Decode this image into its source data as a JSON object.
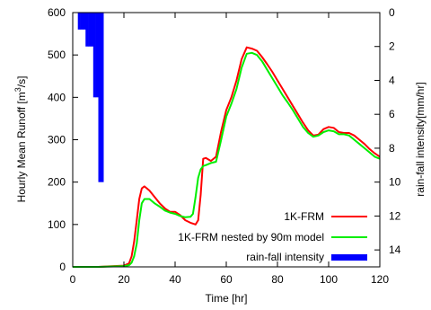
{
  "chart_data": {
    "type": "line",
    "xlabel": "Time [hr]",
    "ylabel_main": "Hourly Mean Runoff [m",
    "ylabel_sup": "3",
    "ylabel_tail": "/s]",
    "y2label": "rain-fall intensity[mm/hr]",
    "xlim": [
      0,
      120
    ],
    "ylim": [
      0,
      600
    ],
    "y2lim": [
      0,
      15
    ],
    "y2_inverted": true,
    "grid": false,
    "legend_position": "bottom-right",
    "x_ticks": [
      "0",
      "20",
      "40",
      "60",
      "80",
      "100",
      "120"
    ],
    "y_ticks": [
      "0",
      "100",
      "200",
      "300",
      "400",
      "500",
      "600"
    ],
    "y2_ticks": [
      "0",
      "2",
      "4",
      "6",
      "8",
      "10",
      "12",
      "14"
    ],
    "series": [
      {
        "name": "1K-FRM",
        "kind": "line",
        "color": "#ff0000",
        "x": [
          0,
          10,
          16,
          20,
          22,
          23,
          24,
          25,
          26,
          27,
          28,
          30,
          32,
          34,
          36,
          38,
          40,
          42,
          44,
          46,
          48,
          49,
          50,
          51,
          52,
          54,
          56,
          58,
          60,
          62,
          64,
          66,
          68,
          70,
          72,
          74,
          76,
          78,
          80,
          82,
          84,
          86,
          88,
          90,
          92,
          94,
          96,
          98,
          100,
          102,
          104,
          106,
          108,
          110,
          112,
          114,
          116,
          118,
          120
        ],
        "y": [
          0,
          0,
          2,
          3,
          8,
          25,
          60,
          110,
          160,
          185,
          190,
          180,
          165,
          150,
          138,
          130,
          130,
          122,
          110,
          104,
          100,
          110,
          170,
          255,
          257,
          250,
          260,
          320,
          370,
          400,
          440,
          490,
          518,
          515,
          510,
          495,
          478,
          460,
          440,
          420,
          400,
          380,
          360,
          340,
          322,
          310,
          312,
          325,
          330,
          328,
          318,
          316,
          316,
          310,
          300,
          290,
          278,
          268,
          260
        ]
      },
      {
        "name": "1K-FRM nested by 90m model",
        "kind": "line",
        "color": "#00ee00",
        "x": [
          0,
          10,
          16,
          20,
          22,
          23,
          24,
          25,
          26,
          27,
          28,
          30,
          32,
          34,
          36,
          38,
          40,
          42,
          44,
          46,
          47,
          48,
          49,
          50,
          51,
          52,
          54,
          56,
          58,
          60,
          62,
          64,
          66,
          68,
          70,
          72,
          74,
          76,
          78,
          80,
          82,
          84,
          86,
          88,
          90,
          92,
          94,
          96,
          98,
          100,
          102,
          104,
          106,
          108,
          110,
          112,
          114,
          116,
          118,
          120
        ],
        "y": [
          0,
          0,
          1,
          2,
          4,
          10,
          25,
          55,
          110,
          150,
          160,
          160,
          150,
          142,
          133,
          128,
          125,
          120,
          117,
          118,
          125,
          165,
          210,
          230,
          238,
          240,
          245,
          248,
          300,
          355,
          385,
          420,
          470,
          503,
          505,
          500,
          485,
          465,
          445,
          425,
          405,
          388,
          370,
          350,
          330,
          316,
          307,
          310,
          318,
          322,
          320,
          313,
          313,
          310,
          300,
          290,
          280,
          270,
          260,
          255
        ]
      },
      {
        "name": "rain-fall intensity",
        "kind": "bar",
        "axis": "y2",
        "color": "#0000ff",
        "x": [
          3,
          4,
          5,
          6,
          7,
          8,
          9,
          10,
          11,
          12
        ],
        "values": [
          1,
          1,
          1,
          2,
          2,
          2,
          5,
          5,
          10,
          10
        ]
      }
    ]
  }
}
